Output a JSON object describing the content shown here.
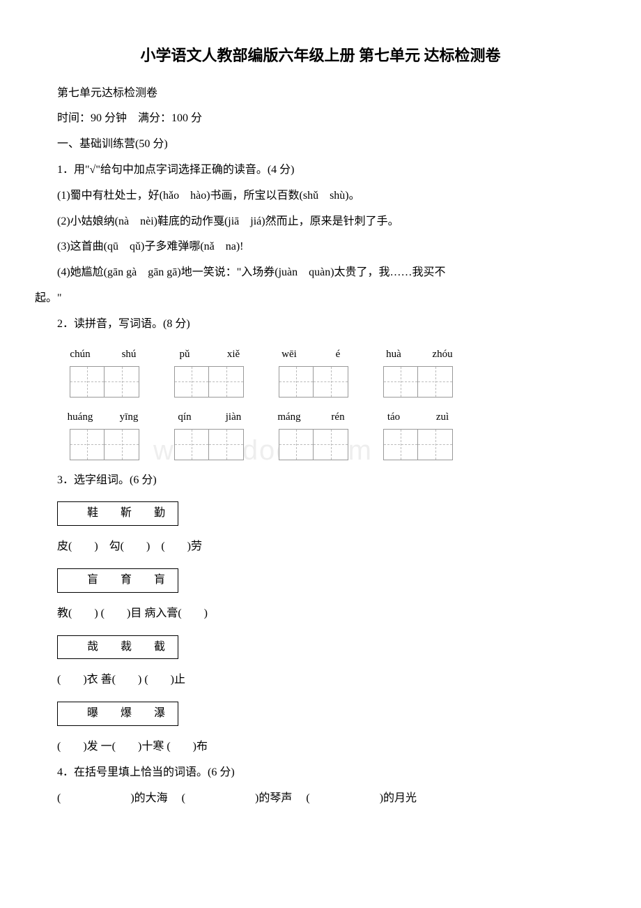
{
  "title": "小学语文人教部编版六年级上册 第七单元 达标检测卷",
  "subtitle": "第七单元达标检测卷",
  "time_score": "时间：90 分钟　满分：100 分",
  "section1": "一、基础训练营(50 分)",
  "q1": {
    "prompt": "1．用\"√\"给句中加点字词选择正确的读音。(4 分)",
    "items": [
      "(1)蜀中有杜处士，好(hǎo　hào)书画，所宝以百数(shǔ　shù)。",
      "(2)小姑娘纳(nà　nèi)鞋底的动作戛(jiā　jiá)然而止，原来是针刺了手。",
      "(3)这首曲(qū　qǔ)子多难弹哪(nǎ　na)!"
    ],
    "item4_part1": "(4)她尴尬(gān gà　gān gā)地一笑说：\"入场券(juàn　quàn)太贵了，我……我买不",
    "item4_part2": "起。\""
  },
  "q2": {
    "prompt": "2．读拼音，写词语。(8 分)",
    "row1": [
      {
        "p1": "chún",
        "p2": "shú"
      },
      {
        "p1": "pǔ",
        "p2": "xiě"
      },
      {
        "p1": "wēi",
        "p2": "é"
      },
      {
        "p1": "huà",
        "p2": "zhóu"
      }
    ],
    "row2": [
      {
        "p1": "huáng",
        "p2": "yīng"
      },
      {
        "p1": "qín",
        "p2": "jiàn"
      },
      {
        "p1": "máng",
        "p2": "rén"
      },
      {
        "p1": "táo",
        "p2": "zuì"
      }
    ]
  },
  "q3": {
    "prompt": "3．选字组词。(6 分)",
    "groups": [
      {
        "options": "鞋　靳　勤",
        "fill": "皮(　　)　勾(　　)　(　　)劳"
      },
      {
        "options": "盲　育　肓",
        "fill": "教(　　) (　　)目 病入膏(　　)"
      },
      {
        "options": "哉　裁　截",
        "fill": "(　　)衣 善(　　) (　　)止"
      },
      {
        "options": "曝　爆　瀑",
        "fill": "(　　)发 一(　　)十寒 (　　)布"
      }
    ]
  },
  "q4": {
    "prompt": "4．在括号里填上恰当的词语。(6 分)",
    "line1_a": "的大海",
    "line1_b": "的琴声",
    "line1_c": "的月光"
  },
  "watermark": "www.bdocx.com"
}
